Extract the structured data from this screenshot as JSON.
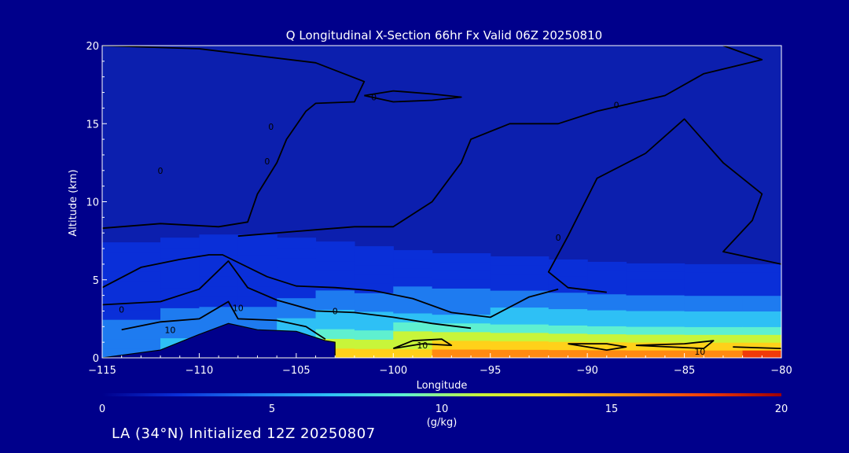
{
  "chart_data": {
    "type": "heatmap",
    "title": "Q Longitudinal X-Section 66hr  Fx Valid 06Z 20250810",
    "xlabel": "Longitude",
    "ylabel": "Altitude (km)",
    "xlim": [
      -115,
      -80
    ],
    "ylim": [
      0,
      20
    ],
    "x_ticks": [
      -115,
      -110,
      -105,
      -100,
      -95,
      -90,
      -85,
      -80
    ],
    "x_tick_labels": [
      "−115",
      "−110",
      "−105",
      "−100",
      "−95",
      "−90",
      "−85",
      "−80"
    ],
    "y_ticks": [
      0,
      5,
      10,
      15,
      20
    ],
    "y_tick_labels": [
      "0",
      "5",
      "10",
      "15",
      "20"
    ],
    "colorbar": {
      "label": "(g/kg)",
      "range": [
        0,
        20
      ],
      "ticks": [
        0,
        5,
        10,
        15,
        20
      ],
      "colors": [
        "#00008b",
        "#0a2fd8",
        "#1e7bf0",
        "#2ec0f5",
        "#5ff0d0",
        "#c8f53a",
        "#ffd11a",
        "#ff8a12",
        "#f03a0a",
        "#9e0000"
      ]
    },
    "terrain": {
      "x": [
        -115,
        -112,
        -110,
        -108.5,
        -107,
        -105,
        -103.5,
        -103
      ],
      "y": [
        0,
        0.5,
        1.5,
        2.2,
        1.8,
        1.7,
        1.1,
        1.0
      ]
    },
    "moisture_profile": {
      "x": [
        -115,
        -112,
        -110,
        -108,
        -106,
        -104,
        -102,
        -100,
        -98,
        -95,
        -92,
        -90,
        -88,
        -85,
        -82,
        -80
      ],
      "surface_q": [
        4,
        7,
        6,
        6,
        7,
        12,
        12.5,
        14,
        14.5,
        15,
        15.5,
        15,
        15.5,
        16,
        16.5,
        17
      ],
      "moist_top_km": [
        7.2,
        7.6,
        7.8,
        8,
        7.8,
        7.6,
        7.3,
        7,
        6.8,
        6.6,
        6.4,
        6.2,
        6.1,
        6,
        6,
        6
      ]
    },
    "contour_labels": [
      "0",
      "0",
      "0",
      "0",
      "0",
      "0",
      "10",
      "10",
      "10",
      "10",
      "0",
      "0"
    ]
  },
  "footer": {
    "run_info": "LA (34°N) Initialized 12Z 20250807"
  }
}
